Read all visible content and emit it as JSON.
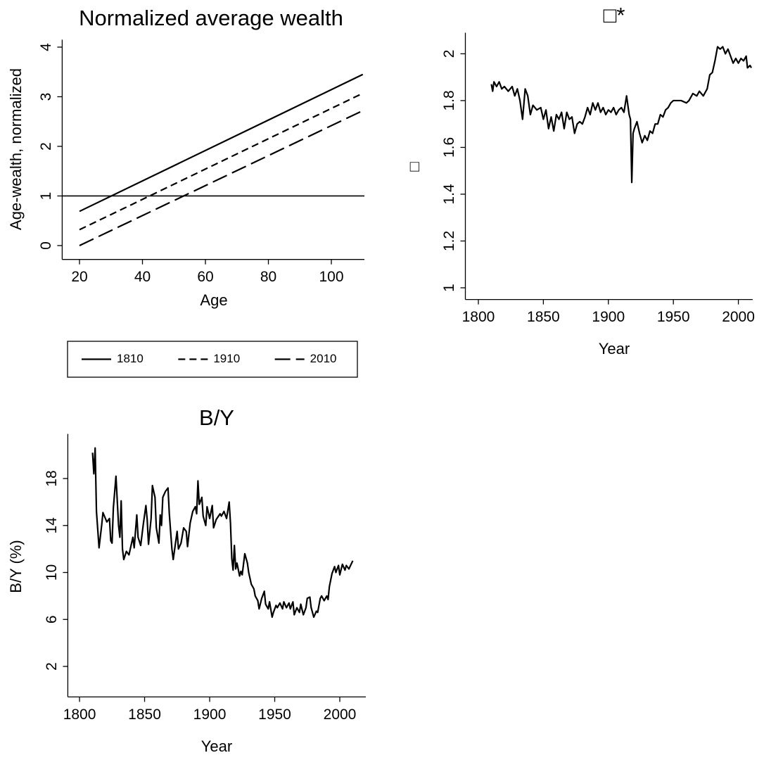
{
  "chart_data": [
    {
      "type": "line",
      "title": "Normalized average wealth",
      "x_label": "Age",
      "y_label": "Age-wealth, normalized",
      "x": [
        20,
        110
      ],
      "series": [
        {
          "name": "1810",
          "color": "#000000",
          "dash": "solid",
          "values": [
            0.69,
            3.45
          ]
        },
        {
          "name": "1910",
          "color": "#000000",
          "dash": "dashed",
          "values": [
            0.32,
            3.07
          ]
        },
        {
          "name": "2010",
          "color": "#000000",
          "dash": "longdash",
          "values": [
            0,
            2.72
          ]
        }
      ],
      "hline": 1,
      "xlim": [
        14.5,
        110.5
      ],
      "xticks": [
        20,
        40,
        60,
        80,
        100
      ],
      "ylim": [
        -0.28,
        4.15
      ],
      "yticks": [
        0,
        1,
        2,
        3,
        4
      ],
      "grid": false,
      "legend": "bottom"
    },
    {
      "type": "line",
      "title": "□*",
      "x_label": "Year",
      "y_label": "□",
      "x": [
        1810,
        1811,
        1812,
        1814,
        1816,
        1818,
        1820,
        1823,
        1826,
        1828,
        1830,
        1832,
        1834,
        1836,
        1838,
        1840,
        1842,
        1845,
        1848,
        1850,
        1852,
        1854,
        1856,
        1858,
        1860,
        1862,
        1864,
        1866,
        1868,
        1870,
        1872,
        1874,
        1876,
        1878,
        1880,
        1882,
        1884,
        1886,
        1888,
        1890,
        1892,
        1894,
        1896,
        1898,
        1900,
        1902,
        1904,
        1906,
        1908,
        1910,
        1912,
        1914,
        1916,
        1917,
        1918,
        1919,
        1920,
        1922,
        1924,
        1926,
        1928,
        1930,
        1932,
        1934,
        1936,
        1938,
        1940,
        1942,
        1944,
        1946,
        1948,
        1950,
        1953,
        1956,
        1960,
        1962,
        1965,
        1968,
        1970,
        1973,
        1976,
        1978,
        1980,
        1982,
        1984,
        1986,
        1988,
        1990,
        1992,
        1994,
        1996,
        1998,
        2000,
        2002,
        2004,
        2006,
        2007,
        2009,
        2010
      ],
      "series": [
        {
          "name": "□*",
          "color": "#000000",
          "dash": "solid",
          "values": [
            1.87,
            1.84,
            1.88,
            1.86,
            1.88,
            1.85,
            1.86,
            1.84,
            1.86,
            1.82,
            1.85,
            1.8,
            1.72,
            1.85,
            1.82,
            1.74,
            1.78,
            1.76,
            1.77,
            1.72,
            1.76,
            1.68,
            1.73,
            1.67,
            1.74,
            1.72,
            1.75,
            1.68,
            1.75,
            1.72,
            1.73,
            1.66,
            1.7,
            1.71,
            1.7,
            1.73,
            1.77,
            1.74,
            1.79,
            1.76,
            1.79,
            1.75,
            1.77,
            1.74,
            1.76,
            1.75,
            1.77,
            1.74,
            1.76,
            1.77,
            1.75,
            1.82,
            1.74,
            1.72,
            1.45,
            1.66,
            1.68,
            1.71,
            1.66,
            1.62,
            1.65,
            1.63,
            1.67,
            1.66,
            1.7,
            1.7,
            1.74,
            1.73,
            1.76,
            1.77,
            1.79,
            1.8,
            1.8,
            1.8,
            1.79,
            1.8,
            1.83,
            1.82,
            1.84,
            1.82,
            1.85,
            1.91,
            1.92,
            1.97,
            2.03,
            2.02,
            2.03,
            2.0,
            2.02,
            1.99,
            1.96,
            1.98,
            1.96,
            1.98,
            1.97,
            1.99,
            1.94,
            1.95,
            1.94
          ]
        }
      ],
      "xlim": [
        1790,
        2011
      ],
      "xticks": [
        1800,
        1850,
        1900,
        1950,
        2000
      ],
      "ylim": [
        0.95,
        2.09
      ],
      "yticks": [
        1,
        1.2,
        1.4,
        1.6,
        1.8,
        2
      ],
      "grid": false
    },
    {
      "type": "line",
      "title": "B/Y",
      "x_label": "Year",
      "y_label": "B/Y (%)",
      "x": [
        1810,
        1811,
        1812,
        1813,
        1815,
        1817,
        1818,
        1821,
        1823,
        1824,
        1825,
        1826,
        1828,
        1830,
        1831,
        1832,
        1833,
        1834,
        1836,
        1838,
        1841,
        1842,
        1844,
        1845,
        1847,
        1849,
        1851,
        1852,
        1853,
        1855,
        1856,
        1858,
        1859,
        1861,
        1862,
        1863,
        1864,
        1866,
        1868,
        1869,
        1871,
        1872,
        1875,
        1876,
        1878,
        1880,
        1882,
        1883,
        1885,
        1887,
        1889,
        1890,
        1891,
        1892,
        1894,
        1895,
        1897,
        1898,
        1900,
        1902,
        1903,
        1905,
        1908,
        1909,
        1911,
        1913,
        1915,
        1916,
        1917,
        1918,
        1919,
        1920,
        1921,
        1923,
        1924,
        1925,
        1927,
        1929,
        1930,
        1932,
        1934,
        1935,
        1937,
        1938,
        1940,
        1942,
        1943,
        1945,
        1946,
        1948,
        1949,
        1951,
        1952,
        1954,
        1956,
        1957,
        1959,
        1961,
        1962,
        1964,
        1965,
        1967,
        1969,
        1970,
        1972,
        1974,
        1975,
        1977,
        1978,
        1980,
        1982,
        1983,
        1985,
        1986,
        1988,
        1990,
        1991,
        1992,
        1994,
        1996,
        1997,
        1999,
        2000,
        2002,
        2004,
        2005,
        2007,
        2010
      ],
      "series": [
        {
          "name": "B/Y",
          "color": "#000000",
          "dash": "solid",
          "values": [
            20.2,
            18.4,
            20.6,
            15.2,
            12.1,
            14.0,
            15.1,
            14.3,
            14.6,
            12.7,
            12.5,
            15.5,
            18.2,
            14.0,
            13.0,
            16.1,
            12.0,
            11.1,
            11.8,
            11.5,
            13.0,
            12.1,
            14.9,
            13.0,
            12.3,
            14.1,
            15.7,
            14.5,
            12.4,
            14.6,
            17.4,
            16.4,
            13.8,
            12.5,
            14.9,
            14.0,
            16.4,
            16.9,
            17.2,
            15.0,
            12.0,
            11.1,
            13.5,
            12.0,
            12.5,
            13.8,
            13.5,
            12.2,
            14.2,
            15.2,
            15.6,
            15.0,
            17.8,
            15.8,
            16.4,
            14.8,
            14.0,
            15.6,
            14.6,
            15.7,
            13.8,
            14.5,
            15.0,
            14.8,
            15.2,
            14.6,
            16.0,
            14.2,
            11.2,
            10.2,
            12.3,
            10.3,
            10.8,
            9.7,
            10.1,
            9.8,
            11.6,
            10.8,
            10.0,
            9.0,
            8.6,
            8.0,
            7.6,
            6.9,
            7.8,
            8.4,
            7.3,
            6.9,
            7.5,
            6.2,
            6.6,
            7.2,
            7.0,
            7.4,
            6.9,
            7.5,
            7.0,
            7.4,
            6.9,
            7.5,
            6.4,
            7.0,
            6.6,
            7.3,
            6.4,
            7.0,
            7.8,
            7.9,
            7.0,
            6.2,
            6.7,
            6.6,
            7.8,
            8.0,
            7.6,
            8.0,
            7.7,
            8.8,
            9.9,
            10.5,
            10.0,
            10.6,
            9.8,
            10.7,
            10.2,
            10.6,
            10.3,
            11.0
          ]
        }
      ],
      "xlim": [
        1791,
        2020
      ],
      "xticks": [
        1800,
        1850,
        1900,
        1950,
        2000
      ],
      "ylim": [
        -0.6,
        21.8
      ],
      "yticks": [
        2,
        6,
        10,
        14,
        18
      ],
      "grid": false
    }
  ]
}
